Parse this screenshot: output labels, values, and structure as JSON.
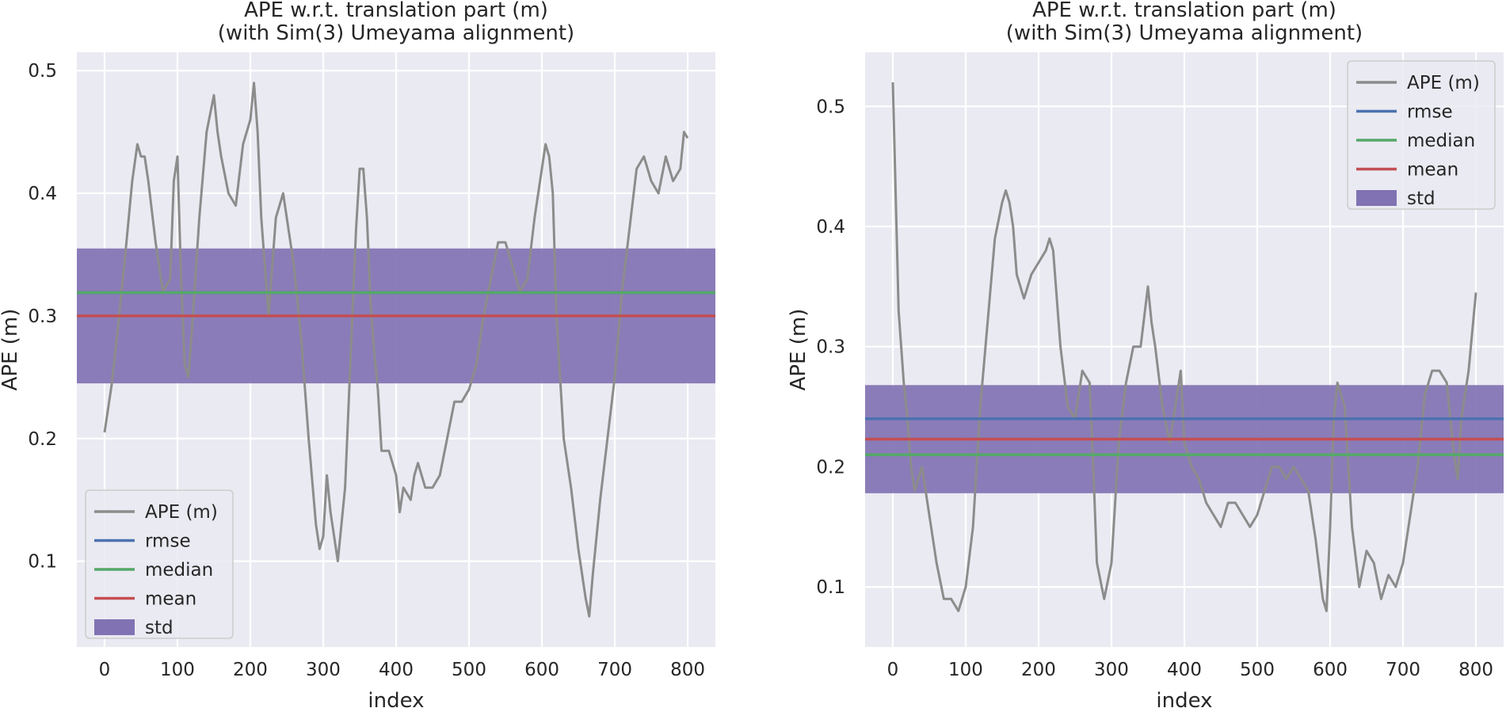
{
  "chart_data": [
    {
      "type": "line",
      "title": "APE w.r.t. translation part (m)\n(with Sim(3) Umeyama alignment)",
      "xlabel": "index",
      "ylabel": "APE (m)",
      "xlim": [
        -38,
        838
      ],
      "ylim": [
        0.03,
        0.515
      ],
      "xticks": [
        0,
        100,
        200,
        300,
        400,
        500,
        600,
        700,
        800
      ],
      "yticks": [
        0.1,
        0.2,
        0.3,
        0.4,
        0.5
      ],
      "grid": true,
      "legend_position": "lower-left",
      "series": [
        {
          "name": "APE (m)",
          "color": "#8c8c8c",
          "x": [
            0,
            10,
            20,
            30,
            38,
            45,
            50,
            55,
            60,
            70,
            80,
            90,
            95,
            100,
            105,
            110,
            115,
            120,
            130,
            140,
            150,
            155,
            160,
            170,
            180,
            190,
            200,
            205,
            210,
            215,
            225,
            235,
            245,
            260,
            270,
            280,
            290,
            295,
            300,
            305,
            310,
            315,
            320,
            330,
            345,
            350,
            355,
            360,
            365,
            370,
            375,
            380,
            390,
            400,
            405,
            410,
            415,
            420,
            425,
            430,
            440,
            450,
            460,
            470,
            480,
            490,
            500,
            510,
            520,
            530,
            540,
            550,
            560,
            570,
            580,
            590,
            600,
            605,
            610,
            615,
            620,
            625,
            630,
            640,
            650,
            660,
            665,
            670,
            680,
            690,
            700,
            710,
            720,
            730,
            740,
            750,
            760,
            770,
            780,
            790,
            795,
            800
          ],
          "values": [
            0.205,
            0.245,
            0.3,
            0.36,
            0.41,
            0.44,
            0.43,
            0.43,
            0.41,
            0.36,
            0.32,
            0.33,
            0.41,
            0.43,
            0.33,
            0.26,
            0.25,
            0.29,
            0.38,
            0.45,
            0.48,
            0.45,
            0.43,
            0.4,
            0.39,
            0.44,
            0.46,
            0.49,
            0.45,
            0.38,
            0.3,
            0.38,
            0.4,
            0.34,
            0.28,
            0.2,
            0.13,
            0.11,
            0.12,
            0.17,
            0.14,
            0.12,
            0.1,
            0.16,
            0.37,
            0.42,
            0.42,
            0.38,
            0.31,
            0.27,
            0.24,
            0.19,
            0.19,
            0.17,
            0.14,
            0.16,
            0.155,
            0.15,
            0.17,
            0.18,
            0.16,
            0.16,
            0.17,
            0.2,
            0.23,
            0.23,
            0.24,
            0.26,
            0.3,
            0.33,
            0.36,
            0.36,
            0.34,
            0.32,
            0.33,
            0.38,
            0.42,
            0.44,
            0.43,
            0.4,
            0.3,
            0.25,
            0.2,
            0.16,
            0.11,
            0.07,
            0.055,
            0.09,
            0.15,
            0.2,
            0.25,
            0.32,
            0.37,
            0.42,
            0.43,
            0.41,
            0.4,
            0.43,
            0.41,
            0.42,
            0.45,
            0.445
          ]
        },
        {
          "name": "rmse",
          "color": "#4c72b0",
          "value": 0.319
        },
        {
          "name": "median",
          "color": "#55a868",
          "value": 0.319
        },
        {
          "name": "mean",
          "color": "#c44e52",
          "value": 0.3
        },
        {
          "name": "std",
          "color": "#8172b3",
          "range": [
            0.245,
            0.355
          ]
        }
      ]
    },
    {
      "type": "line",
      "title": "APE w.r.t. translation part (m)\n(with Sim(3) Umeyama alignment)",
      "xlabel": "index",
      "ylabel": "APE (m)",
      "xlim": [
        -38,
        838
      ],
      "ylim": [
        0.05,
        0.545
      ],
      "xticks": [
        0,
        100,
        200,
        300,
        400,
        500,
        600,
        700,
        800
      ],
      "yticks": [
        0.1,
        0.2,
        0.3,
        0.4,
        0.5
      ],
      "grid": true,
      "legend_position": "top-right",
      "series": [
        {
          "name": "APE (m)",
          "color": "#8c8c8c",
          "x": [
            0,
            3,
            8,
            15,
            20,
            25,
            30,
            40,
            50,
            60,
            70,
            80,
            90,
            95,
            100,
            110,
            120,
            130,
            140,
            150,
            155,
            160,
            165,
            170,
            180,
            190,
            200,
            210,
            215,
            220,
            230,
            240,
            250,
            260,
            270,
            275,
            280,
            290,
            300,
            310,
            320,
            330,
            340,
            350,
            355,
            360,
            370,
            380,
            390,
            395,
            400,
            410,
            420,
            430,
            440,
            450,
            460,
            470,
            480,
            490,
            500,
            510,
            520,
            530,
            540,
            550,
            560,
            570,
            580,
            590,
            595,
            600,
            605,
            610,
            620,
            630,
            640,
            650,
            660,
            670,
            680,
            690,
            700,
            710,
            720,
            730,
            740,
            750,
            760,
            770,
            775,
            780,
            790,
            800
          ],
          "values": [
            0.52,
            0.45,
            0.33,
            0.27,
            0.24,
            0.2,
            0.18,
            0.2,
            0.16,
            0.12,
            0.09,
            0.09,
            0.08,
            0.09,
            0.1,
            0.15,
            0.25,
            0.32,
            0.39,
            0.42,
            0.43,
            0.42,
            0.4,
            0.36,
            0.34,
            0.36,
            0.37,
            0.38,
            0.39,
            0.38,
            0.3,
            0.25,
            0.24,
            0.28,
            0.27,
            0.2,
            0.12,
            0.09,
            0.12,
            0.22,
            0.27,
            0.3,
            0.3,
            0.35,
            0.32,
            0.3,
            0.25,
            0.22,
            0.26,
            0.28,
            0.22,
            0.2,
            0.19,
            0.17,
            0.16,
            0.15,
            0.17,
            0.17,
            0.16,
            0.15,
            0.16,
            0.18,
            0.2,
            0.2,
            0.19,
            0.2,
            0.19,
            0.18,
            0.14,
            0.09,
            0.08,
            0.15,
            0.24,
            0.27,
            0.25,
            0.15,
            0.1,
            0.13,
            0.12,
            0.09,
            0.11,
            0.1,
            0.12,
            0.16,
            0.2,
            0.26,
            0.28,
            0.28,
            0.27,
            0.21,
            0.19,
            0.24,
            0.28,
            0.345
          ]
        },
        {
          "name": "rmse",
          "color": "#4c72b0",
          "value": 0.24
        },
        {
          "name": "median",
          "color": "#55a868",
          "value": 0.21
        },
        {
          "name": "mean",
          "color": "#c44e52",
          "value": 0.223
        },
        {
          "name": "std",
          "color": "#8172b3",
          "range": [
            0.178,
            0.268
          ]
        }
      ]
    }
  ]
}
